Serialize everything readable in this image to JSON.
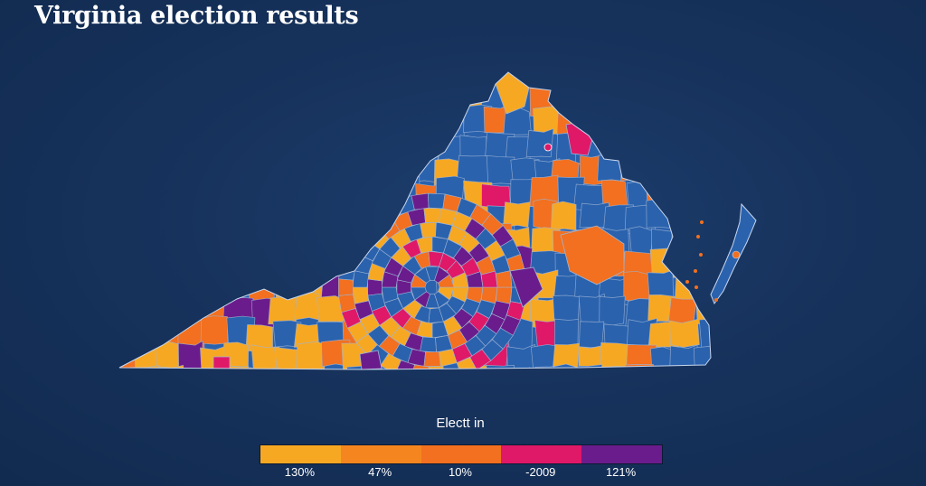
{
  "header": {
    "title": "Virginia election results"
  },
  "colors": {
    "background": "#17335d",
    "blue": "#2a62ad",
    "yellow": "#f7a823",
    "orange": "#f2701f",
    "pink": "#e01868",
    "purple": "#6b1c8c",
    "border": "#9fb4d6"
  },
  "legend": {
    "title": "Electt in",
    "items": [
      {
        "label": "130%",
        "color": "#f7a823"
      },
      {
        "label": "47%",
        "color": "#f5861f"
      },
      {
        "label": "10%",
        "color": "#f2701f"
      },
      {
        "label": "-2009",
        "color": "#e01868"
      },
      {
        "label": "121%",
        "color": "#6b1c8c"
      }
    ]
  }
}
